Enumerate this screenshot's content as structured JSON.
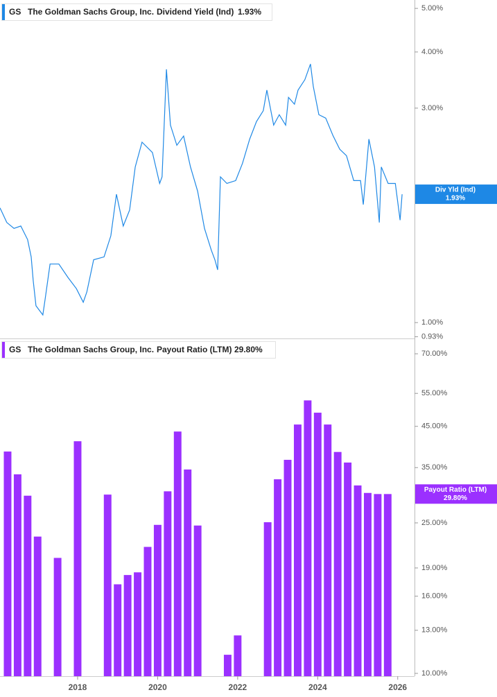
{
  "chart_data": [
    {
      "type": "line",
      "ticker": "GS",
      "company": "The Goldman Sachs Group, Inc.",
      "metric": "Dividend Yield (Ind)",
      "metric_value": "1.93%",
      "log_scale": true,
      "xlim": [
        2016.06,
        2026.42
      ],
      "ylim": [
        0.922,
        5.22
      ],
      "yticks": [
        {
          "value": 5,
          "label": "5.00%"
        },
        {
          "value": 4,
          "label": "4.00%"
        },
        {
          "value": 3,
          "label": "3.00%"
        },
        {
          "value": 1,
          "label": "1.00%"
        },
        {
          "value": 0.93,
          "label": "0.93%"
        }
      ],
      "x": [
        2016.06,
        2016.23,
        2016.41,
        2016.58,
        2016.75,
        2016.84,
        2016.89,
        2016.96,
        2017.13,
        2017.19,
        2017.31,
        2017.53,
        2017.76,
        2017.97,
        2018.14,
        2018.23,
        2018.4,
        2018.66,
        2018.83,
        2018.97,
        2019.14,
        2019.3,
        2019.44,
        2019.61,
        2019.87,
        2020.05,
        2020.11,
        2020.22,
        2020.32,
        2020.48,
        2020.65,
        2020.82,
        2021.0,
        2021.17,
        2021.34,
        2021.43,
        2021.5,
        2021.57,
        2021.73,
        2021.95,
        2022.12,
        2022.3,
        2022.47,
        2022.64,
        2022.73,
        2022.9,
        2023.04,
        2023.2,
        2023.27,
        2023.42,
        2023.51,
        2023.68,
        2023.82,
        2023.89,
        2024.03,
        2024.2,
        2024.38,
        2024.55,
        2024.72,
        2024.9,
        2025.07,
        2025.14,
        2025.28,
        2025.42,
        2025.54,
        2025.59,
        2025.76,
        2025.94,
        2026.06,
        2026.11
      ],
      "series": [
        {
          "name": "Div Yld (Ind)",
          "color": "#1e88e5",
          "value_label": "1.93%",
          "values": [
            1.8,
            1.67,
            1.62,
            1.64,
            1.53,
            1.4,
            1.24,
            1.09,
            1.04,
            1.13,
            1.35,
            1.35,
            1.26,
            1.19,
            1.11,
            1.17,
            1.38,
            1.4,
            1.56,
            1.93,
            1.64,
            1.78,
            2.22,
            2.52,
            2.39,
            2.04,
            2.11,
            3.66,
            2.75,
            2.48,
            2.6,
            2.22,
            1.96,
            1.62,
            1.45,
            1.38,
            1.31,
            2.11,
            2.04,
            2.07,
            2.26,
            2.56,
            2.8,
            2.96,
            3.29,
            2.75,
            2.9,
            2.75,
            3.17,
            3.06,
            3.29,
            3.47,
            3.76,
            3.35,
            2.9,
            2.85,
            2.61,
            2.43,
            2.35,
            2.07,
            2.07,
            1.83,
            2.56,
            2.22,
            1.67,
            2.22,
            2.04,
            2.04,
            1.69,
            1.93
          ]
        }
      ]
    },
    {
      "type": "bar",
      "ticker": "GS",
      "company": "The Goldman Sachs Group, Inc.",
      "metric": "Payout Ratio (LTM)",
      "metric_value": "29.80%",
      "log_scale": true,
      "xlim": [
        2016.06,
        2026.42
      ],
      "xticks": [
        2018,
        2020,
        2022,
        2024,
        2026
      ],
      "ylim": [
        9.83,
        76.2
      ],
      "yticks": [
        {
          "value": 70,
          "label": "70.00%"
        },
        {
          "value": 55,
          "label": "55.00%"
        },
        {
          "value": 45,
          "label": "45.00%"
        },
        {
          "value": 35,
          "label": "35.00%"
        },
        {
          "value": 25,
          "label": "25.00%"
        },
        {
          "value": 19,
          "label": "19.00%"
        },
        {
          "value": 16,
          "label": "16.00%"
        },
        {
          "value": 13,
          "label": "13.00%"
        },
        {
          "value": 10,
          "label": "10.00%"
        }
      ],
      "x": [
        2016.25,
        2016.5,
        2016.75,
        2017.0,
        2017.5,
        2018.0,
        2018.75,
        2019.0,
        2019.25,
        2019.5,
        2019.75,
        2020.0,
        2020.25,
        2020.5,
        2020.75,
        2021.0,
        2021.75,
        2022.0,
        2022.75,
        2023.0,
        2023.25,
        2023.5,
        2023.75,
        2024.0,
        2024.25,
        2024.5,
        2024.75,
        2025.0,
        2025.25,
        2025.5,
        2025.75
      ],
      "series": [
        {
          "name": "Payout Ratio (LTM)",
          "color": "#9b30ff",
          "value_label": "29.80%",
          "values": [
            38.6,
            33.6,
            29.5,
            23.0,
            20.2,
            41.1,
            29.7,
            17.2,
            18.2,
            18.5,
            21.6,
            24.7,
            30.3,
            43.6,
            34.6,
            24.6,
            11.2,
            12.6,
            25.1,
            32.6,
            36.7,
            45.5,
            52.7,
            48.9,
            45.5,
            38.5,
            36.1,
            31.4,
            30.0,
            29.8,
            29.8
          ]
        }
      ]
    }
  ]
}
